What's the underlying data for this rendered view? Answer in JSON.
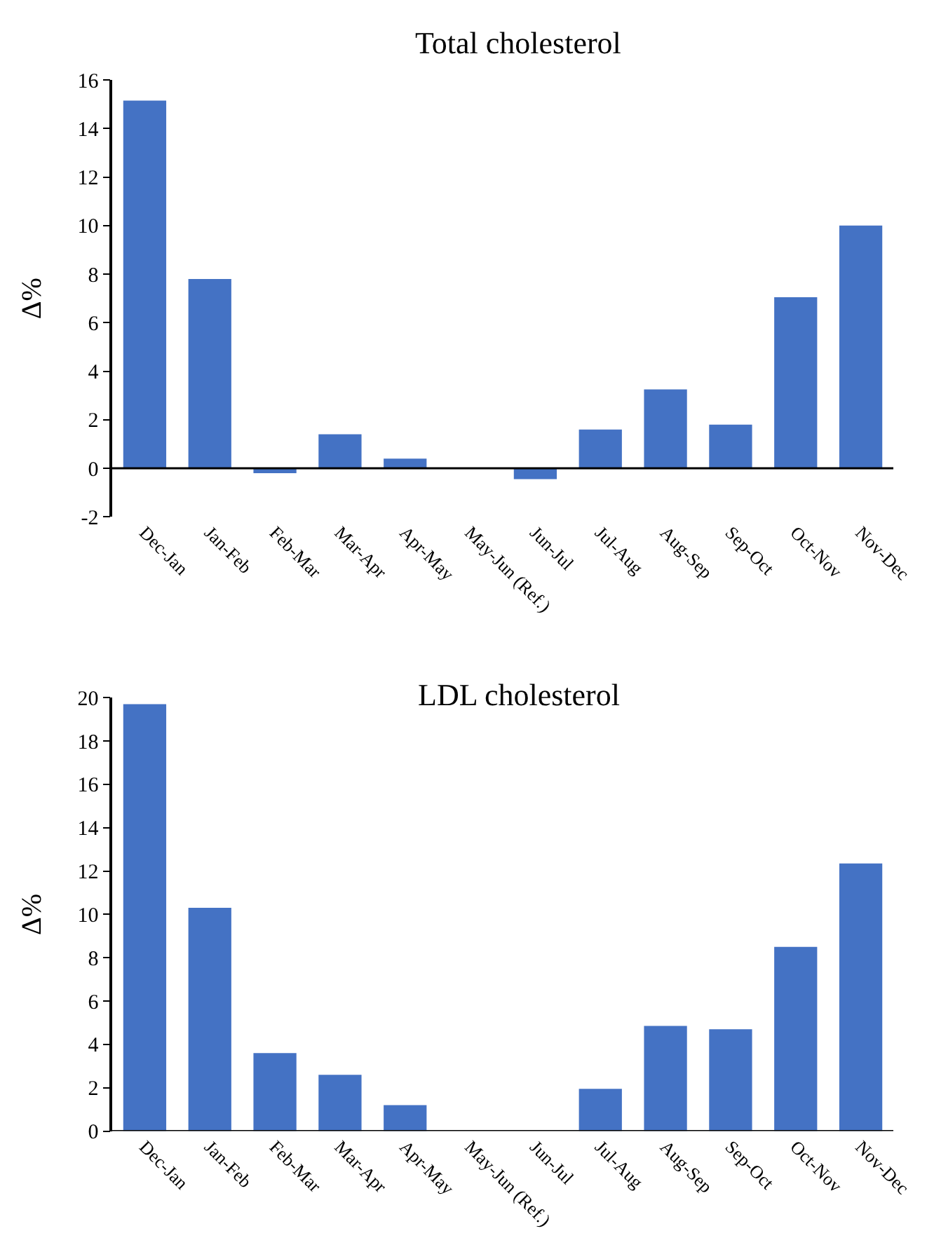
{
  "chart_data": [
    {
      "type": "bar",
      "title": "Total cholesterol",
      "ylabel": "Δ%",
      "categories": [
        "Dec-Jan",
        "Jan-Feb",
        "Feb-Mar",
        "Mar-Apr",
        "Apr-May",
        "May-Jun (Ref.)",
        "Jun-Jul",
        "Jul-Aug",
        "Aug-Sep",
        "Sep-Oct",
        "Oct-Nov",
        "Nov-Dec"
      ],
      "values": [
        15.15,
        7.8,
        -0.2,
        1.4,
        0.4,
        0,
        -0.45,
        1.6,
        3.25,
        1.8,
        7.05,
        10.0
      ],
      "color": "#4472c4",
      "ylim": [
        -2,
        16
      ],
      "yticks": [
        -2,
        0,
        2,
        4,
        6,
        8,
        10,
        12,
        14,
        16
      ]
    },
    {
      "type": "bar",
      "title": "LDL cholesterol",
      "ylabel": "Δ%",
      "categories": [
        "Dec-Jan",
        "Jan-Feb",
        "Feb-Mar",
        "Mar-Apr",
        "Apr-May",
        "May-Jun (Ref.)",
        "Jun-Jul",
        "Jul-Aug",
        "Aug-Sep",
        "Sep-Oct",
        "Oct-Nov",
        "Nov-Dec"
      ],
      "values": [
        19.7,
        10.3,
        3.6,
        2.6,
        1.2,
        0,
        0,
        1.95,
        4.85,
        4.7,
        8.5,
        12.35
      ],
      "color": "#4472c4",
      "ylim": [
        0,
        20
      ],
      "yticks": [
        0,
        2,
        4,
        6,
        8,
        10,
        12,
        14,
        16,
        18,
        20
      ]
    }
  ]
}
